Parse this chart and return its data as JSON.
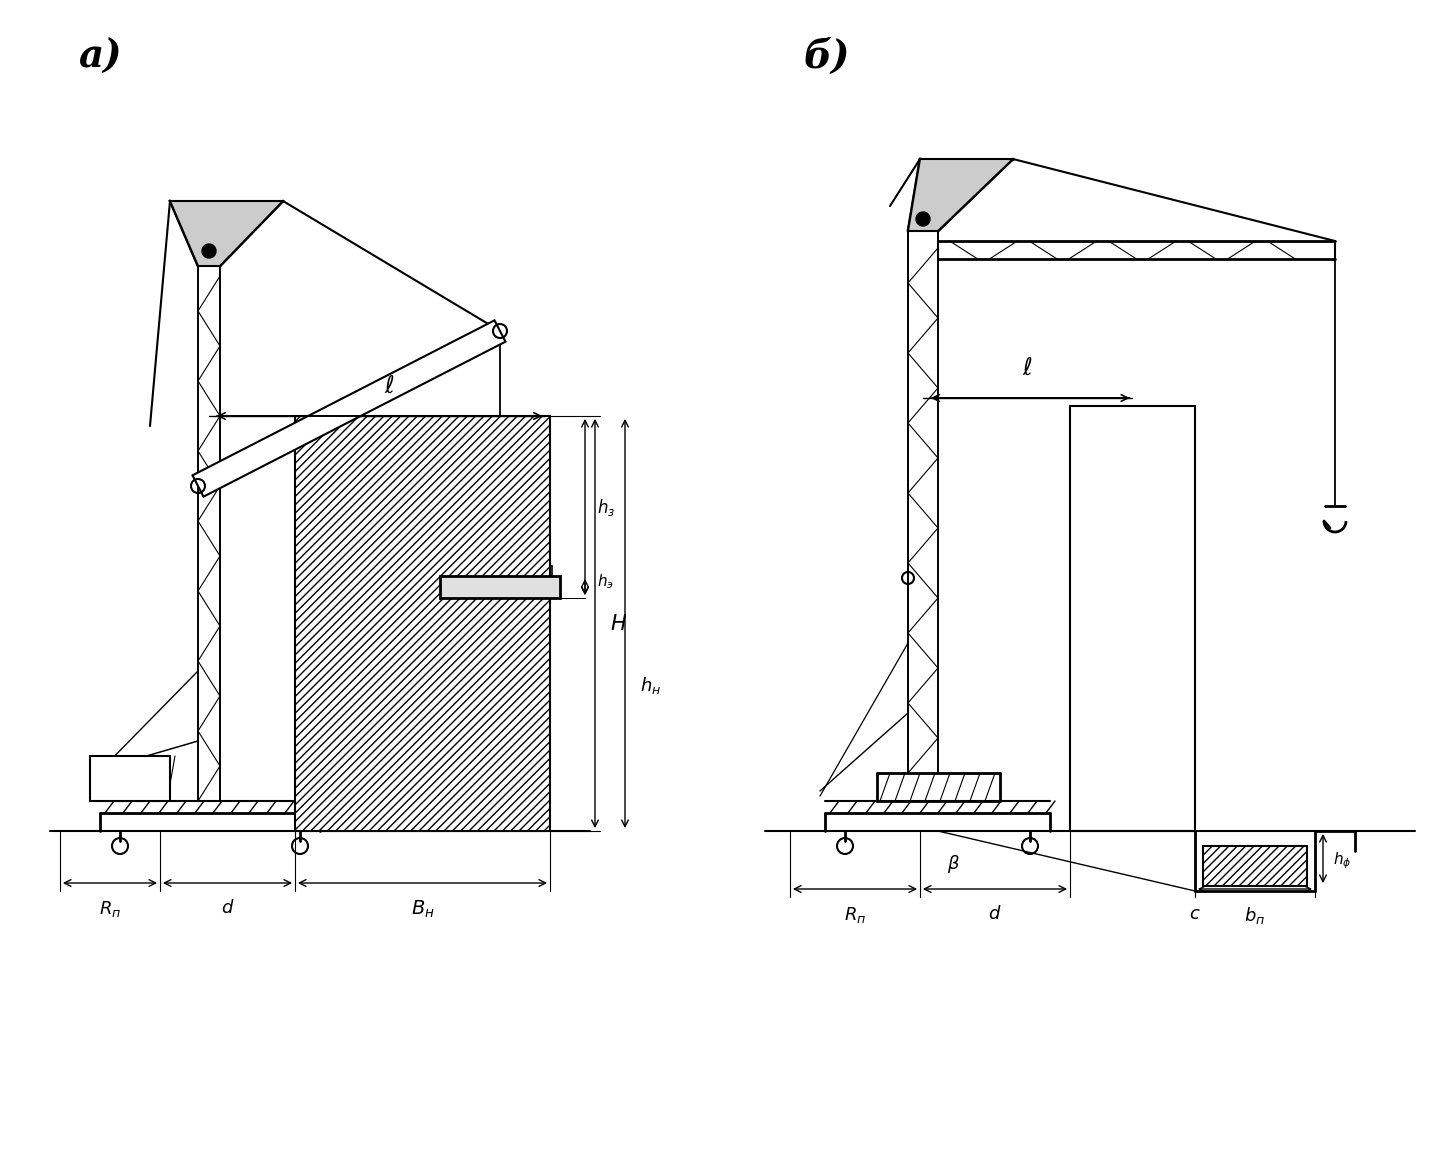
{
  "background": "#ffffff",
  "label_a": "a)",
  "label_b": "б)",
  "fig_width": 14.29,
  "fig_height": 11.76,
  "dpi": 100
}
